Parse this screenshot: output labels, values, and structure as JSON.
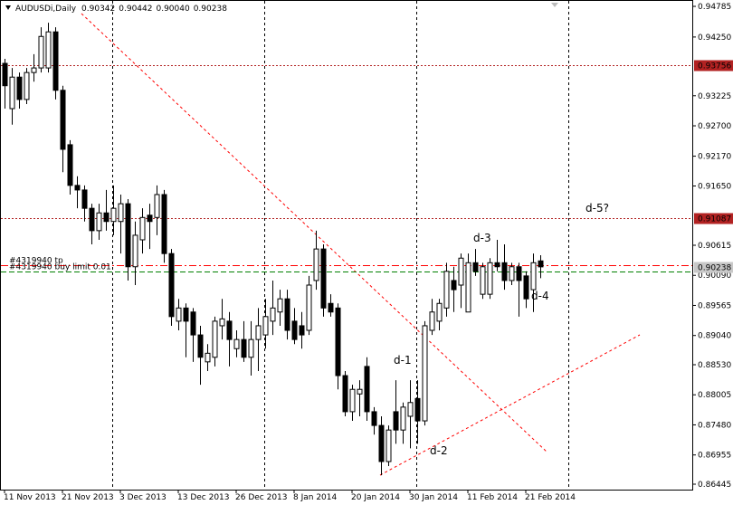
{
  "chart_data": {
    "type": "candlestick",
    "title": "AUDUSDi,Daily",
    "categories": [
      "11 Nov 2013",
      null,
      null,
      null,
      null,
      null,
      null,
      null,
      "21 Nov 2013",
      null,
      null,
      null,
      null,
      null,
      null,
      null,
      "3 Dec 2013",
      null,
      null,
      null,
      null,
      null,
      null,
      null,
      "13 Dec 2013",
      null,
      null,
      null,
      null,
      null,
      null,
      null,
      "26 Dec 2013",
      null,
      null,
      null,
      null,
      null,
      null,
      null,
      "8 Jan 2014",
      null,
      null,
      null,
      null,
      null,
      null,
      null,
      "20 Jan 2014",
      null,
      null,
      null,
      null,
      null,
      null,
      null,
      "30 Jan 2014",
      null,
      null,
      null,
      null,
      null,
      null,
      null,
      "11 Feb 2014",
      null,
      null,
      null,
      null,
      null,
      null,
      null,
      "21 Feb 2014",
      null,
      null
    ],
    "open": [
      0.9379,
      0.93,
      0.9355,
      0.9316,
      0.9363,
      0.9371,
      0.9371,
      0.9434,
      0.9332,
      0.9237,
      0.9166,
      0.9158,
      0.9126,
      0.9087,
      0.9118,
      0.9103,
      0.9103,
      0.9134,
      0.9024,
      0.9071,
      0.9114,
      0.911,
      0.915,
      0.9047,
      0.8929,
      0.8952,
      0.8945,
      0.8905,
      0.8858,
      0.8866,
      0.8921,
      0.8929,
      0.8881,
      0.8897,
      0.8866,
      0.8897,
      0.8905,
      0.8929,
      0.8945,
      0.8968,
      0.8929,
      0.8921,
      0.8913,
      0.9,
      0.9055,
      0.896,
      0.8952,
      0.8834,
      0.8771,
      0.8802,
      0.885,
      0.8771,
      0.8747,
      0.8684,
      0.8771,
      0.8739,
      0.8763,
      0.8794,
      0.8755,
      0.8913,
      0.8929,
      0.8952,
      0.9,
      0.8992,
      0.8945,
      0.9031,
      0.8976,
      0.8976,
      0.9031,
      0.9031,
      0.9,
      0.9024,
      0.9008,
      0.8984,
      0.90342
    ],
    "high": [
      0.9387,
      0.9371,
      0.9363,
      0.9371,
      0.9395,
      0.9442,
      0.945,
      0.9442,
      0.934,
      0.9245,
      0.9182,
      0.9166,
      0.9134,
      0.9134,
      0.9158,
      0.9166,
      0.915,
      0.9142,
      0.9103,
      0.9126,
      0.9134,
      0.9166,
      0.9158,
      0.9055,
      0.8968,
      0.896,
      0.8952,
      0.8921,
      0.8889,
      0.8937,
      0.8968,
      0.8945,
      0.8913,
      0.8929,
      0.8929,
      0.8952,
      0.8968,
      0.9,
      0.8984,
      0.8984,
      0.8952,
      0.8945,
      0.9008,
      0.9087,
      0.9063,
      0.8976,
      0.896,
      0.8842,
      0.8818,
      0.8826,
      0.8866,
      0.8779,
      0.8763,
      0.8747,
      0.8826,
      0.8787,
      0.8826,
      0.8826,
      0.8929,
      0.8968,
      0.8968,
      0.9031,
      0.9024,
      0.9047,
      0.9047,
      0.9055,
      0.9031,
      0.9039,
      0.9071,
      0.9063,
      0.9031,
      0.9031,
      0.9016,
      0.9047,
      0.90442
    ],
    "low": [
      0.93,
      0.9272,
      0.93,
      0.9308,
      0.9347,
      0.9363,
      0.9363,
      0.9316,
      0.9189,
      0.915,
      0.9126,
      0.9103,
      0.9063,
      0.9071,
      0.9087,
      0.9079,
      0.9047,
      0.9,
      0.8992,
      0.9047,
      0.9055,
      0.9079,
      0.9031,
      0.8921,
      0.8913,
      0.8866,
      0.8858,
      0.8818,
      0.8842,
      0.885,
      0.8897,
      0.885,
      0.8866,
      0.8858,
      0.8834,
      0.8842,
      0.8881,
      0.8905,
      0.8921,
      0.8897,
      0.8889,
      0.8881,
      0.8905,
      0.8984,
      0.8937,
      0.8937,
      0.881,
      0.8763,
      0.8755,
      0.8763,
      0.8755,
      0.8731,
      0.866,
      0.8676,
      0.8715,
      0.8715,
      0.8707,
      0.8715,
      0.8747,
      0.8905,
      0.8913,
      0.8937,
      0.8945,
      0.8952,
      0.8945,
      0.9008,
      0.8968,
      0.8968,
      0.9016,
      0.8984,
      0.8992,
      0.8937,
      0.8952,
      0.8945,
      0.9004
    ],
    "close": [
      0.934,
      0.9355,
      0.9316,
      0.9363,
      0.9371,
      0.9426,
      0.9434,
      0.9332,
      0.9229,
      0.9166,
      0.9158,
      0.9126,
      0.9087,
      0.9118,
      0.9103,
      0.9126,
      0.9134,
      0.9024,
      0.9079,
      0.911,
      0.9103,
      0.915,
      0.9047,
      0.8937,
      0.8952,
      0.8929,
      0.8905,
      0.8866,
      0.8873,
      0.8929,
      0.8933,
      0.8897,
      0.8897,
      0.8866,
      0.8897,
      0.8921,
      0.8937,
      0.8952,
      0.8968,
      0.8913,
      0.8897,
      0.8905,
      0.8992,
      0.9055,
      0.8952,
      0.8945,
      0.8834,
      0.8771,
      0.881,
      0.881,
      0.8771,
      0.8747,
      0.8684,
      0.8739,
      0.8739,
      0.8779,
      0.8787,
      0.8755,
      0.8921,
      0.8945,
      0.896,
      0.9016,
      0.8984,
      0.9039,
      0.9031,
      0.9016,
      0.9024,
      0.9031,
      0.9024,
      0.9,
      0.9024,
      0.9,
      0.8968,
      0.9031,
      0.90238
    ],
    "ohlc_labels": [
      "0.90342",
      "0.90442",
      "0.90040",
      "0.90238"
    ],
    "up_color": "#ffffff",
    "down_color": "#000000",
    "ylim": [
      0.8635,
      0.94896
    ],
    "yticks": [
      0.94785,
      {
        "value": 0.9425,
        "label": "0.94250"
      },
      0.93225,
      {
        "value": 0.927,
        "label": "0.92700"
      },
      {
        "value": 0.9217,
        "label": "0.92170"
      },
      {
        "value": 0.9165,
        "label": "0.91650"
      },
      0.90615,
      {
        "value": 0.9009,
        "label": "0.90090"
      },
      0.89565,
      {
        "value": 0.8904,
        "label": "0.89040"
      },
      {
        "value": 0.8853,
        "label": "0.88530"
      },
      0.88005,
      {
        "value": 0.8748,
        "label": "0.87480"
      },
      0.86955,
      0.86445
    ],
    "price_lines": [
      {
        "value": 0.93756,
        "color": "#b22222"
      },
      {
        "value": 0.91087,
        "color": "#b22222"
      }
    ],
    "orders": [
      {
        "label": "#4319940 tp",
        "value": 0.9027,
        "color": "#ff0000"
      },
      {
        "label": "#4319940 buy limit 0.01",
        "value": 0.9016,
        "color": "#008000"
      }
    ],
    "annotations": [
      "d-1",
      "d-2",
      "d-3",
      "d-4",
      "d-5?"
    ]
  }
}
